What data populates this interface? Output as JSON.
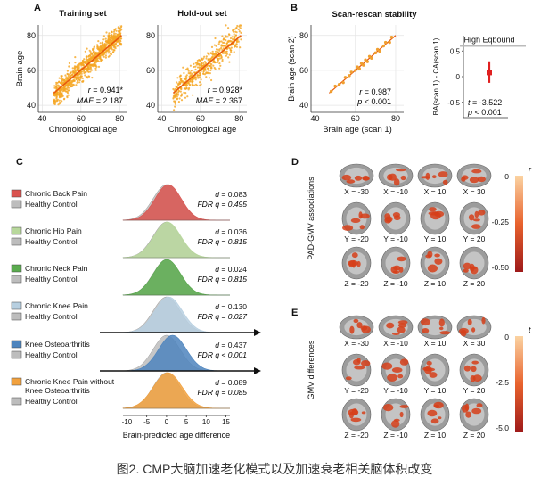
{
  "panels": {
    "A": {
      "letter": "A",
      "plots": [
        {
          "title": "Training set",
          "ylabel": "Brain age",
          "xlabel": "Chronological age",
          "r": "r = 0.941*",
          "mae": "MAE = 2.187",
          "xticks": [
            "40",
            "60",
            "80"
          ],
          "yticks": [
            "40",
            "60",
            "80"
          ]
        },
        {
          "title": "Hold-out set",
          "ylabel": "",
          "xlabel": "Chronological age",
          "r": "r = 0.928*",
          "mae": "MAE = 2.367",
          "xticks": [
            "40",
            "60",
            "80"
          ],
          "yticks": [
            "40",
            "60",
            "80"
          ]
        }
      ]
    },
    "B": {
      "letter": "B",
      "title": "Scan-rescan stability",
      "ylabel": "Brain age (scan 2)",
      "xlabel": "Brain age (scan 1)",
      "r": "r = 0.987",
      "p": "p < 0.001",
      "xticks": [
        "40",
        "60",
        "80"
      ],
      "yticks": [
        "40",
        "60",
        "80"
      ],
      "bound_label": "High Eqbound",
      "ba_ylabel": "BA(scan 1) - CA(scan 1)",
      "ba_yticks": [
        "0.5",
        "0",
        "-0.5"
      ],
      "t": "t = -3.522",
      "p2": "p < 0.001"
    },
    "C": {
      "letter": "C",
      "xlabel": "Brain-predicted age difference",
      "xticks": [
        "-10",
        "-5",
        "0",
        "5",
        "10",
        "15"
      ]
    },
    "D": {
      "letter": "D",
      "ylabel": "PAD-GMV associations",
      "cbar_label": "r",
      "cbar_ticks": [
        "0",
        "-0.25",
        "-0.50"
      ]
    },
    "E": {
      "letter": "E",
      "ylabel": "GMV differences",
      "cbar_label": "t",
      "cbar_ticks": [
        "0",
        "-2.5",
        "-5.0"
      ]
    }
  },
  "slice_labels": [
    [
      "X = -30",
      "X = -10",
      "X = 10",
      "X = 30"
    ],
    [
      "Y = -20",
      "Y = -10",
      "Y = 10",
      "Y = 20"
    ],
    [
      "Z = -20",
      "Z = -10",
      "Z = 10",
      "Z = 20"
    ]
  ],
  "chart_data": [
    {
      "type": "scatter",
      "title": "Training set",
      "xlabel": "Chronological age",
      "ylabel": "Brain age",
      "xlim": [
        38,
        84
      ],
      "ylim": [
        36,
        86
      ],
      "fit_line": {
        "x": [
          46,
          81
        ],
        "y": [
          47,
          80
        ]
      },
      "stats": {
        "r": 0.941,
        "MAE": 2.187
      }
    },
    {
      "type": "scatter",
      "title": "Hold-out set",
      "xlabel": "Chronological age",
      "xlim": [
        38,
        84
      ],
      "ylim": [
        36,
        86
      ],
      "fit_line": {
        "x": [
          46,
          81
        ],
        "y": [
          47,
          80
        ]
      },
      "stats": {
        "r": 0.928,
        "MAE": 2.367
      }
    },
    {
      "type": "scatter",
      "title": "Scan-rescan stability",
      "xlabel": "Brain age (scan 1)",
      "ylabel": "Brain age (scan 2)",
      "xlim": [
        38,
        84
      ],
      "ylim": [
        36,
        86
      ],
      "x": [
        48,
        50,
        52,
        54,
        55,
        57,
        58,
        60,
        61,
        62,
        63,
        64,
        65,
        66,
        67,
        68,
        70,
        71,
        72,
        74,
        75,
        77,
        78
      ],
      "y": [
        48,
        51,
        52,
        53,
        56,
        57,
        59,
        60,
        62,
        61,
        64,
        63,
        66,
        65,
        68,
        67,
        70,
        72,
        71,
        74,
        76,
        76,
        79
      ],
      "stats": {
        "r": 0.987,
        "p": "< 0.001"
      }
    },
    {
      "type": "bar",
      "ylabel": "BA(scan 1) - CA(scan 1)",
      "ylim": [
        -0.8,
        0.8
      ],
      "point": 0.08,
      "ci": [
        -0.12,
        0.3
      ],
      "high_eqbound": 0.6,
      "stats": {
        "t": -3.522,
        "p": "< 0.001"
      }
    },
    {
      "type": "area",
      "xlabel": "Brain-predicted age difference",
      "xlim": [
        -11,
        16
      ],
      "series": [
        {
          "name": "Chronic Back Pain",
          "d": 0.083,
          "fdr_q": 0.495,
          "color": "#d9534f",
          "mean": 0.4,
          "sd": 3.3
        },
        {
          "name": "Chronic Hip Pain",
          "d": 0.036,
          "fdr_q": 0.815,
          "color": "#b8d89c",
          "mean": 0.2,
          "sd": 3.4
        },
        {
          "name": "Chronic Neck Pain",
          "d": 0.024,
          "fdr_q": 0.815,
          "color": "#5aab4e",
          "mean": 0.1,
          "sd": 3.4
        },
        {
          "name": "Chronic Knee Pain",
          "d": 0.13,
          "fdr_q": 0.027,
          "color": "#b7cfe0",
          "mean": 0.5,
          "sd": 3.5
        },
        {
          "name": "Knee Osteoarthritis",
          "d": 0.437,
          "fdr_q": "< 0.001",
          "color": "#4d84bd",
          "mean": 1.5,
          "sd": 3.5
        },
        {
          "name": "Chronic Knee Pain without Knee Osteoarthritis",
          "d": 0.089,
          "fdr_q": 0.085,
          "color": "#f1a13e",
          "mean": 0.3,
          "sd": 3.6
        }
      ]
    }
  ],
  "ridge_text": [
    {
      "legend": "Chronic Back Pain",
      "control": "Healthy Control",
      "d": "d = 0.083",
      "q": "FDR q = 0.495"
    },
    {
      "legend": "Chronic Hip Pain",
      "control": "Healthy Control",
      "d": "d = 0.036",
      "q": "FDR q = 0.815"
    },
    {
      "legend": "Chronic Neck Pain",
      "control": "Healthy Control",
      "d": "d = 0.024",
      "q": "FDR q = 0.815"
    },
    {
      "legend": "Chronic Knee Pain",
      "control": "Healthy Control",
      "d": "d = 0.130",
      "q": "FDR q = 0.027"
    },
    {
      "legend": "Knee Osteoarthritis",
      "control": "Healthy Control",
      "d": "d = 0.437",
      "q": "FDR q < 0.001"
    },
    {
      "legend": "Chronic Knee Pain without",
      "legend2": "Knee Osteoarthritis",
      "control": "Healthy Control",
      "d": "d = 0.089",
      "q": "FDR q = 0.085"
    }
  ],
  "caption": "图2. CMP大脑加速老化模式以及加速衰老相关脑体积改变",
  "colors": {
    "scatter": "#f5a623",
    "fit": "#e8590c",
    "scan": "#f0a030",
    "ci": "#e02020",
    "control": "#bdbdbd",
    "brain_gray": "#8a8a8a",
    "heat": "#d6401a"
  }
}
